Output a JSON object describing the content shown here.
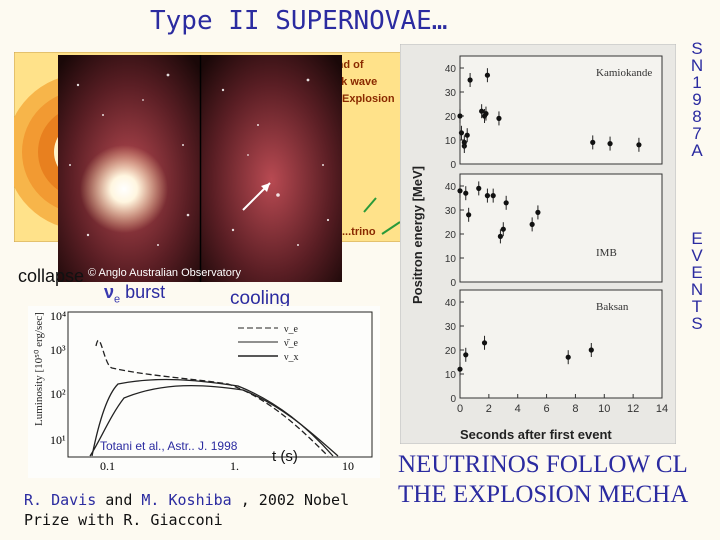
{
  "title": "Type II SUPERNOVAE…",
  "side_sn": [
    "S",
    "N",
    "1",
    "9",
    "8",
    "7",
    "A"
  ],
  "side_events": [
    "E",
    "V",
    "E",
    "N",
    "T",
    "S"
  ],
  "left_panel": {
    "labels": [
      "collapse",
      "burst",
      "cooling"
    ],
    "nu_symbol": "ν",
    "nu_sub": "e",
    "diagram_text": [
      "...ound of",
      "...k wave",
      "Explosion",
      "...trino"
    ],
    "photo_credit": "© Anglo Australian Observatory"
  },
  "luminosity_chart": {
    "ylabel": "Luminosity [10⁵⁰ erg/sec]",
    "yticks": [
      "10⁴",
      "10³",
      "10²",
      "10¹"
    ],
    "xticks": [
      "0.1",
      "1.",
      "10"
    ],
    "xunit": "t (s)",
    "citation": "Totani et al., Astr.. J. 1998",
    "legend": [
      "ν_e",
      "ν̄_e",
      "ν_x"
    ]
  },
  "events_chart": {
    "ylabel": "Positron energy [MeV]",
    "xlabel": "Seconds after first event",
    "xticks": [
      "0",
      "2",
      "4",
      "6",
      "8",
      "10",
      "12",
      "14"
    ],
    "panels": [
      "Kamiokande",
      "IMB",
      "Baksan"
    ]
  },
  "chart_data": {
    "type": "scatter",
    "xlabel": "Seconds after first event",
    "ylabel": "Positron energy [MeV]",
    "xlim": [
      0,
      14
    ],
    "ylim": [
      0,
      45
    ],
    "series": [
      {
        "name": "Kamiokande",
        "x": [
          0.0,
          0.1,
          0.3,
          0.3,
          0.5,
          0.7,
          1.5,
          1.7,
          1.8,
          1.9,
          2.7,
          9.2,
          10.4,
          12.4
        ],
        "y": [
          20,
          13,
          7.5,
          9,
          12,
          35,
          22,
          20,
          21,
          37,
          19,
          9,
          8.5,
          8
        ]
      },
      {
        "name": "IMB",
        "x": [
          0.0,
          0.4,
          0.6,
          1.3,
          1.9,
          2.3,
          2.8,
          3.0,
          3.2,
          5.0,
          5.4
        ],
        "y": [
          38,
          37,
          28,
          39,
          36,
          36,
          19,
          22,
          33,
          24,
          29
        ]
      },
      {
        "name": "Baksan",
        "x": [
          0.0,
          0.4,
          1.7,
          7.5,
          9.1
        ],
        "y": [
          12,
          18,
          23,
          17,
          20
        ]
      }
    ]
  },
  "caption": {
    "part1": "R. Davis",
    "part2": " and ",
    "part3": "M. Koshiba",
    "part4": " , 2002 Nobel",
    "line2": "Prize with R. Giacconi"
  },
  "bottom_text": [
    "NEUTRINOS FOLLOW CL",
    "THE EXPLOSION MECHA"
  ],
  "colors": {
    "title": "#2b2ba0",
    "background": "#fdfaf1"
  }
}
